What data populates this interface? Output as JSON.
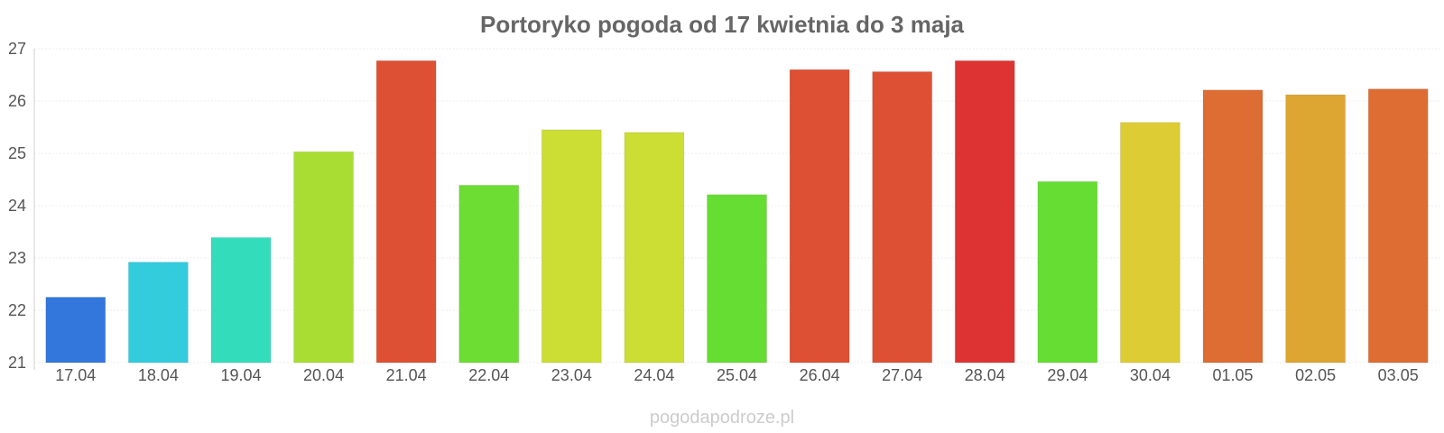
{
  "source": "pogodapodroze.pl",
  "chart_data": {
    "type": "bar",
    "title": "Portoryko pogoda od 17 kwietnia do 3 maja",
    "xlabel": "",
    "ylabel": "",
    "ylim": [
      21,
      27
    ],
    "yticks": [
      "21",
      "22",
      "23",
      "24",
      "25",
      "26",
      "27"
    ],
    "grid": true,
    "categories": [
      "17.04",
      "18.04",
      "19.04",
      "20.04",
      "21.04",
      "22.04",
      "23.04",
      "24.04",
      "25.04",
      "26.04",
      "27.04",
      "28.04",
      "29.04",
      "30.04",
      "01.05",
      "02.05",
      "03.05"
    ],
    "values": [
      22.25,
      22.92,
      23.39,
      25.03,
      26.77,
      24.39,
      25.45,
      25.4,
      24.21,
      26.6,
      26.56,
      26.77,
      24.46,
      25.59,
      26.21,
      26.12,
      26.23
    ],
    "colors": [
      "#3377dd",
      "#33ccdd",
      "#33ddbb",
      "#aadd33",
      "#dd5033",
      "#6ddd33",
      "#ccdd33",
      "#ccdd33",
      "#66dd33",
      "#dd5033",
      "#dd5033",
      "#dd3333",
      "#66dd33",
      "#ddcc33",
      "#dd6d33",
      "#dda633",
      "#dd6d33"
    ]
  }
}
